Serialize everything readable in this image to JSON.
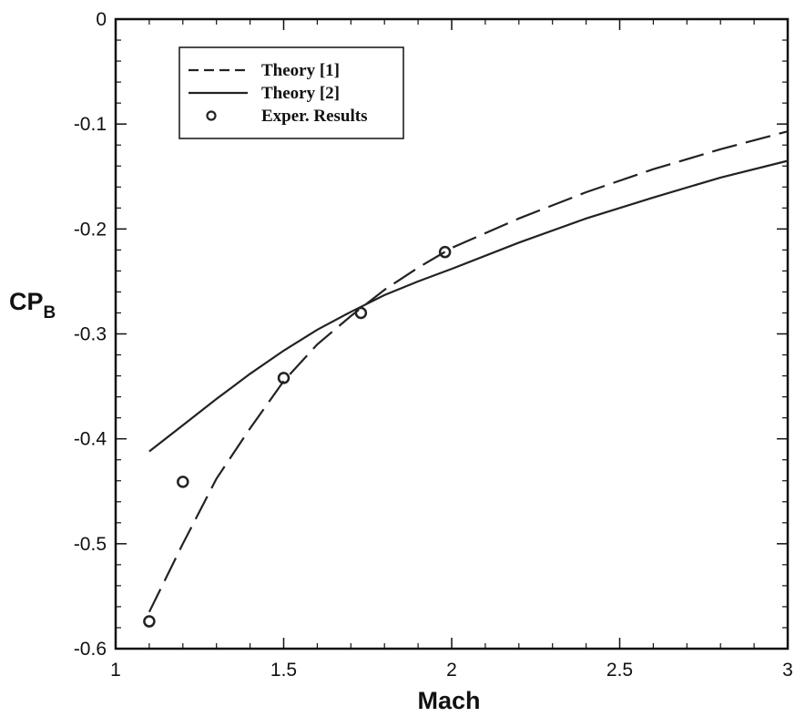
{
  "chart_data": {
    "type": "line",
    "xlabel": "Mach",
    "ylabel": "CP",
    "ylabel_sub": "B",
    "xlim": [
      1,
      3
    ],
    "ylim": [
      -0.6,
      0
    ],
    "x_ticks": [
      1,
      1.5,
      2,
      2.5,
      3
    ],
    "x_tick_labels": [
      "1",
      "1.5",
      "2",
      "2.5",
      "3"
    ],
    "y_ticks": [
      0,
      -0.1,
      -0.2,
      -0.3,
      -0.4,
      -0.5,
      -0.6
    ],
    "y_tick_labels": [
      "0",
      "-0.1",
      "-0.2",
      "-0.3",
      "-0.4",
      "-0.5",
      "-0.6"
    ],
    "grid": false,
    "legend_position": "top-left",
    "series": [
      {
        "name": "Theory [1]",
        "style": "dashed",
        "color": "#222222",
        "x": [
          1.1,
          1.2,
          1.3,
          1.4,
          1.5,
          1.6,
          1.7,
          1.8,
          1.9,
          2.0,
          2.2,
          2.4,
          2.6,
          2.8,
          3.0
        ],
        "y": [
          -0.565,
          -0.5,
          -0.438,
          -0.39,
          -0.345,
          -0.31,
          -0.283,
          -0.258,
          -0.237,
          -0.218,
          -0.19,
          -0.165,
          -0.143,
          -0.124,
          -0.107
        ]
      },
      {
        "name": "Theory [2]",
        "style": "solid",
        "color": "#222222",
        "x": [
          1.1,
          1.2,
          1.3,
          1.4,
          1.5,
          1.6,
          1.7,
          1.8,
          1.9,
          2.0,
          2.2,
          2.4,
          2.6,
          2.8,
          3.0
        ],
        "y": [
          -0.412,
          -0.387,
          -0.362,
          -0.338,
          -0.316,
          -0.296,
          -0.279,
          -0.263,
          -0.25,
          -0.238,
          -0.213,
          -0.19,
          -0.17,
          -0.151,
          -0.135
        ]
      },
      {
        "name": "Exper. Results",
        "style": "markers",
        "marker": "circle",
        "color": "#222222",
        "x": [
          1.1,
          1.2,
          1.5,
          1.73,
          1.98
        ],
        "y": [
          -0.574,
          -0.441,
          -0.342,
          -0.28,
          -0.222
        ]
      }
    ]
  }
}
